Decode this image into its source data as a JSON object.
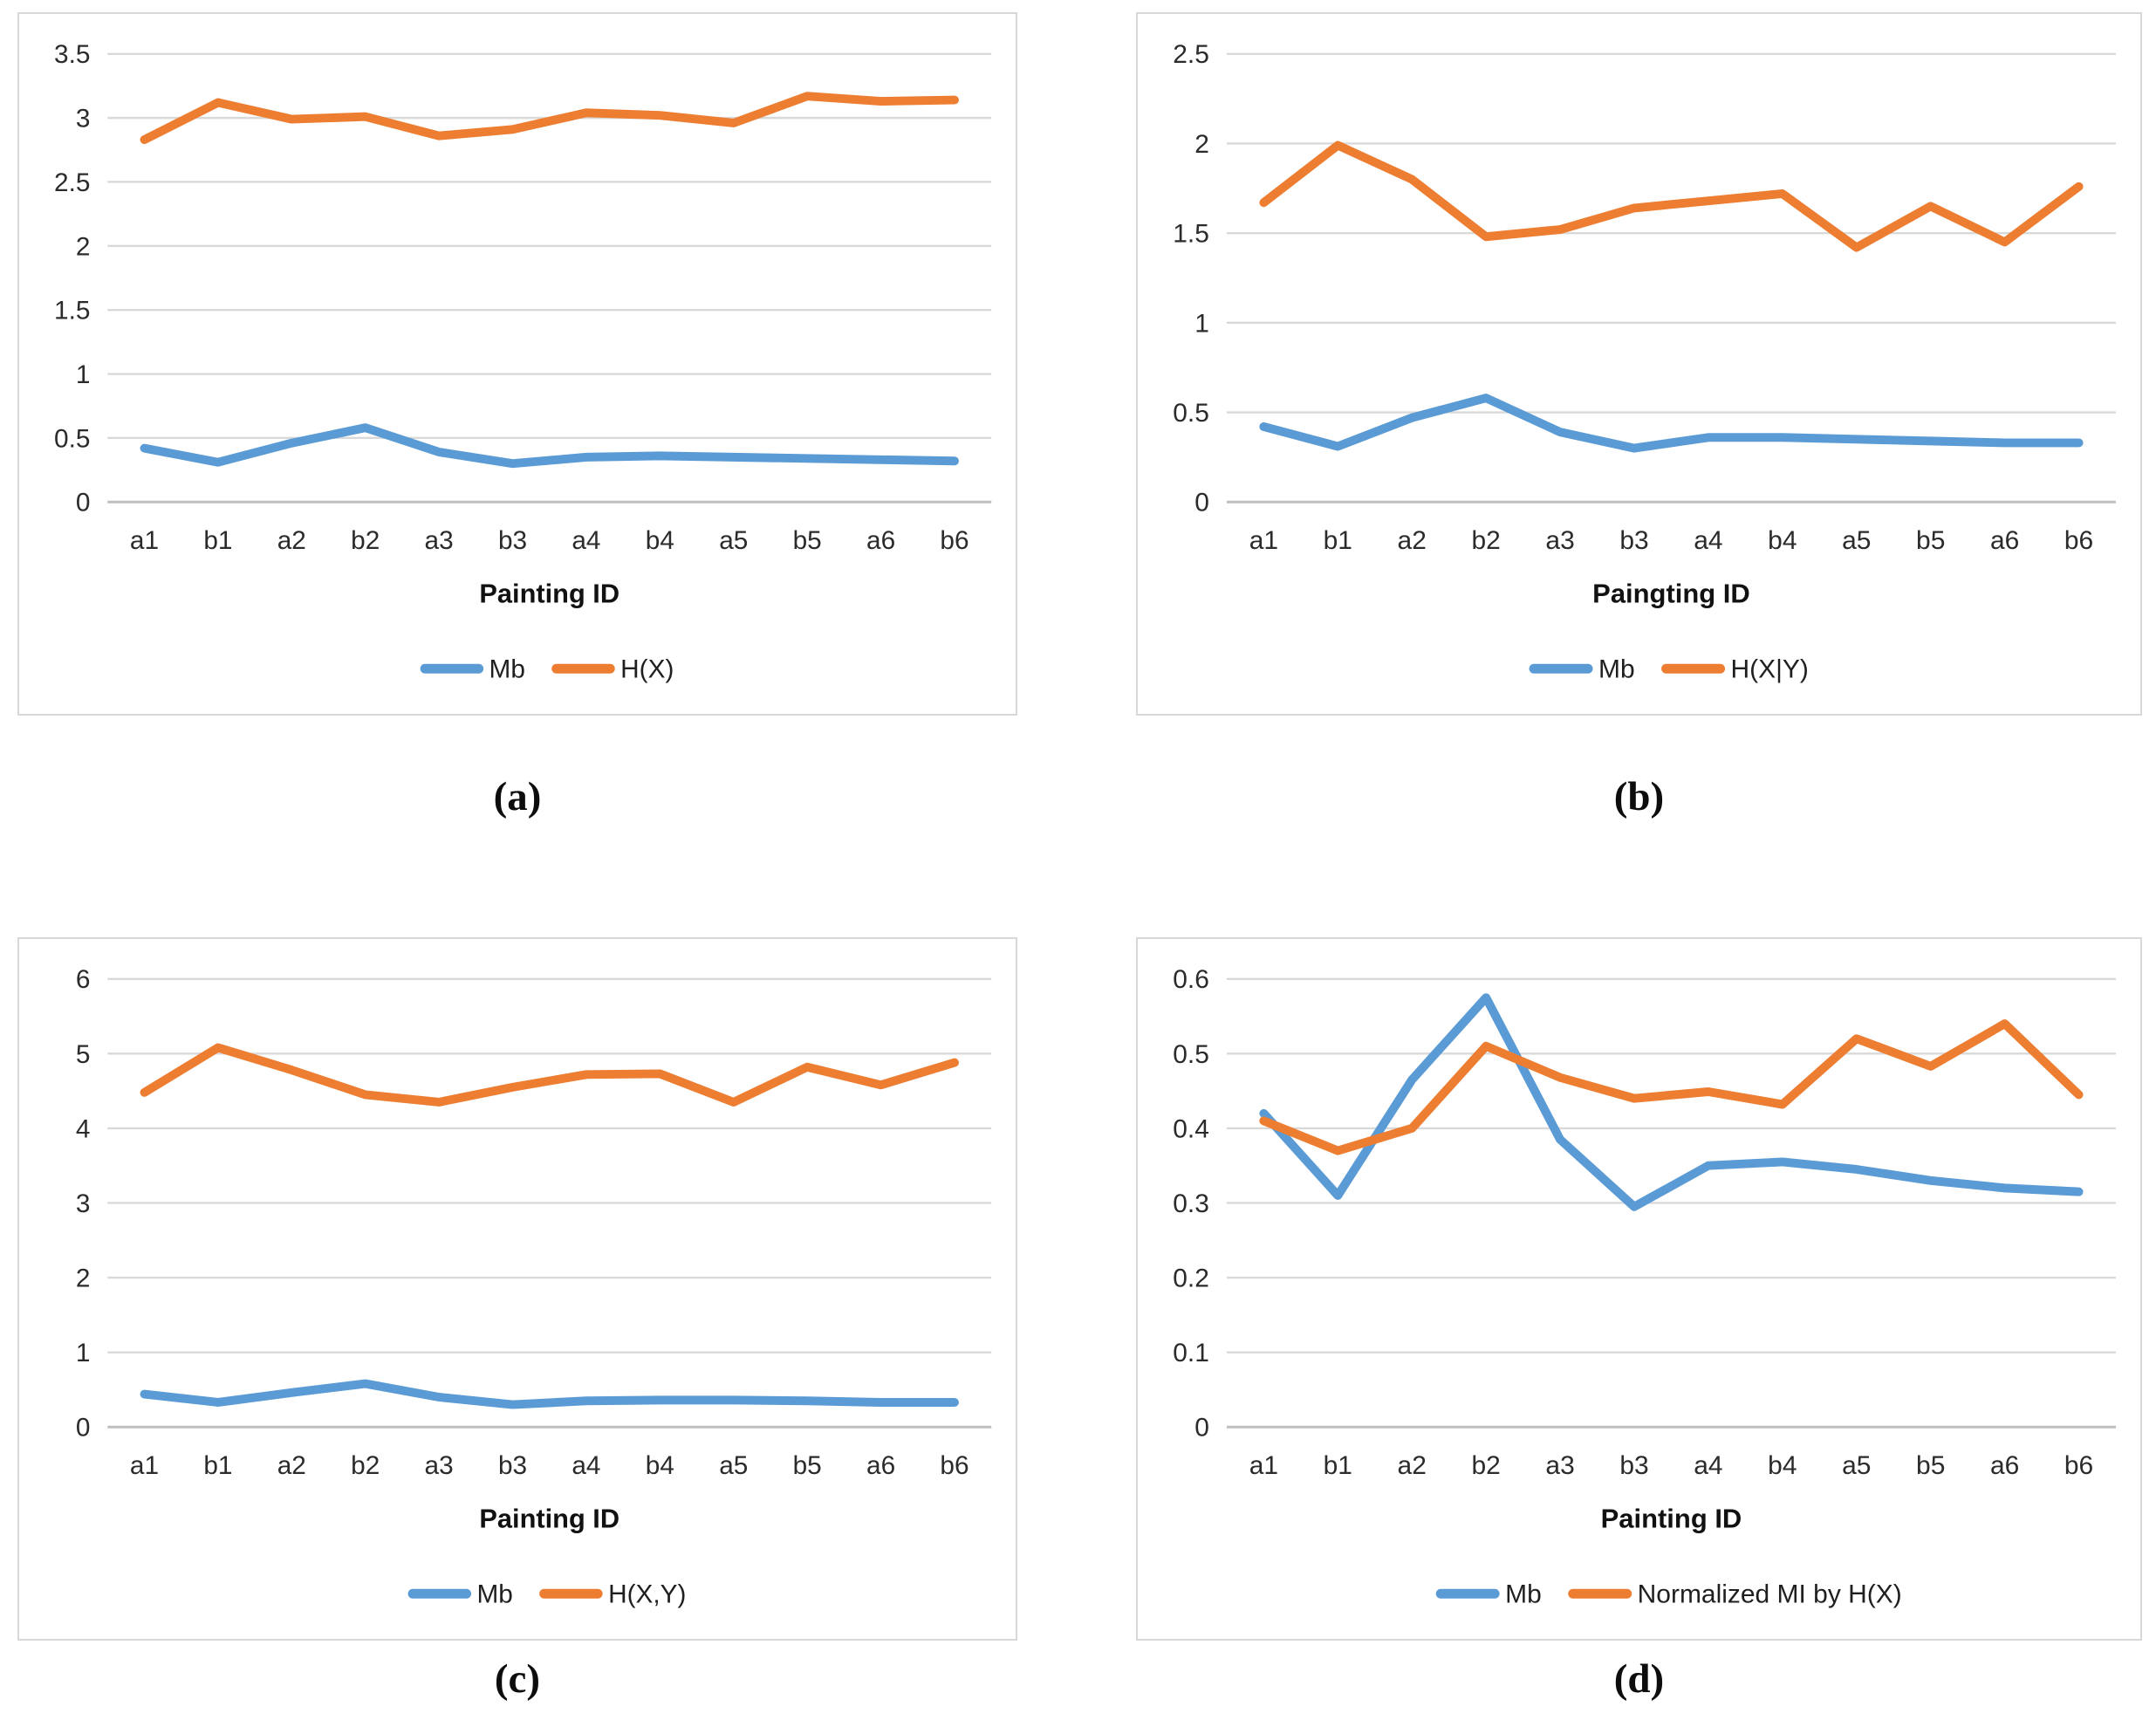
{
  "colors": {
    "blue": "#5B9BD5",
    "orange": "#ED7D31",
    "gridline": "#D9D9D9",
    "axis_line": "#BFBFBF",
    "tick_text": "#2b2b2b",
    "title_text": "#111111"
  },
  "chart_data": [
    {
      "id": "a",
      "type": "line",
      "caption": "(a)",
      "xlabel": "Painting ID",
      "ylabel": "",
      "grid": true,
      "legend_position": "bottom",
      "categories": [
        "a1",
        "b1",
        "a2",
        "b2",
        "a3",
        "b3",
        "a4",
        "b4",
        "a5",
        "b5",
        "a6",
        "b6"
      ],
      "ylim": [
        0,
        3.5
      ],
      "yticks": [
        0,
        0.5,
        1,
        1.5,
        2,
        2.5,
        3,
        3.5
      ],
      "series": [
        {
          "name": "Mb",
          "color_key": "blue",
          "values": [
            0.42,
            0.31,
            0.46,
            0.58,
            0.39,
            0.3,
            0.35,
            0.36,
            0.35,
            0.34,
            0.33,
            0.32
          ]
        },
        {
          "name": "H(X)",
          "color_key": "orange",
          "values": [
            2.83,
            3.12,
            2.99,
            3.01,
            2.86,
            2.91,
            3.04,
            3.02,
            2.96,
            3.17,
            3.13,
            3.14
          ]
        }
      ]
    },
    {
      "id": "b",
      "type": "line",
      "caption": "(b)",
      "xlabel": "Paingting ID",
      "ylabel": "",
      "grid": true,
      "legend_position": "bottom",
      "categories": [
        "a1",
        "b1",
        "a2",
        "b2",
        "a3",
        "b3",
        "a4",
        "b4",
        "a5",
        "b5",
        "a6",
        "b6"
      ],
      "ylim": [
        0,
        2.5
      ],
      "yticks": [
        0,
        0.5,
        1,
        1.5,
        2,
        2.5
      ],
      "series": [
        {
          "name": "Mb",
          "color_key": "blue",
          "values": [
            0.42,
            0.31,
            0.47,
            0.58,
            0.39,
            0.3,
            0.36,
            0.36,
            0.35,
            0.34,
            0.33,
            0.33
          ]
        },
        {
          "name": "H(X|Y)",
          "color_key": "orange",
          "values": [
            1.67,
            1.99,
            1.8,
            1.48,
            1.52,
            1.64,
            1.68,
            1.72,
            1.42,
            1.65,
            1.45,
            1.76
          ]
        }
      ]
    },
    {
      "id": "c",
      "type": "line",
      "caption": "(c)",
      "xlabel": "Painting ID",
      "ylabel": "",
      "grid": true,
      "legend_position": "bottom",
      "categories": [
        "a1",
        "b1",
        "a2",
        "b2",
        "a3",
        "b3",
        "a4",
        "b4",
        "a5",
        "b5",
        "a6",
        "b6"
      ],
      "ylim": [
        0,
        6
      ],
      "yticks": [
        0,
        1,
        2,
        3,
        4,
        5,
        6
      ],
      "series": [
        {
          "name": "Mb",
          "color_key": "blue",
          "values": [
            0.44,
            0.33,
            0.46,
            0.58,
            0.4,
            0.3,
            0.35,
            0.36,
            0.36,
            0.35,
            0.33,
            0.33
          ]
        },
        {
          "name": "H(X,Y)",
          "color_key": "orange",
          "values": [
            4.48,
            5.08,
            4.78,
            4.45,
            4.35,
            4.55,
            4.72,
            4.73,
            4.35,
            4.82,
            4.58,
            4.88
          ]
        }
      ]
    },
    {
      "id": "d",
      "type": "line",
      "caption": "(d)",
      "xlabel": "Painting ID",
      "ylabel": "",
      "grid": true,
      "legend_position": "bottom",
      "categories": [
        "a1",
        "b1",
        "a2",
        "b2",
        "a3",
        "b3",
        "a4",
        "b4",
        "a5",
        "b5",
        "a6",
        "b6"
      ],
      "ylim": [
        0,
        0.6
      ],
      "yticks": [
        0,
        0.1,
        0.2,
        0.3,
        0.4,
        0.5,
        0.6
      ],
      "series": [
        {
          "name": "Mb",
          "color_key": "blue",
          "values": [
            0.42,
            0.31,
            0.465,
            0.575,
            0.385,
            0.295,
            0.35,
            0.355,
            0.345,
            0.33,
            0.32,
            0.315
          ]
        },
        {
          "name": "Normalized MI by H(X)",
          "color_key": "orange",
          "values": [
            0.41,
            0.37,
            0.4,
            0.51,
            0.468,
            0.44,
            0.449,
            0.432,
            0.52,
            0.483,
            0.54,
            0.445
          ]
        }
      ]
    }
  ]
}
